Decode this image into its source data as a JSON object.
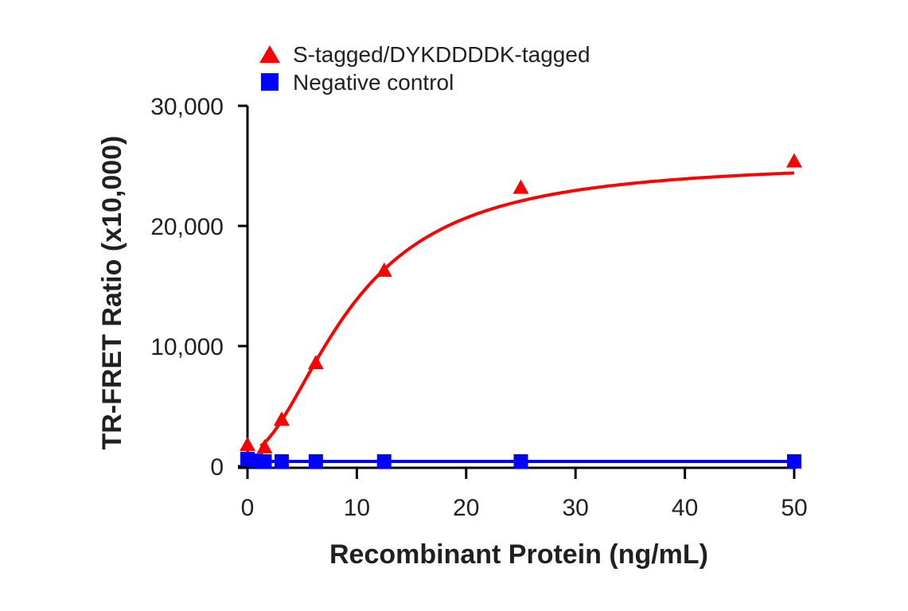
{
  "chart_data": {
    "type": "line",
    "title": "",
    "xlabel": "Recombinant Protein (ng/mL)",
    "ylabel": "TR-FRET Ratio (x10,000)",
    "xlim": [
      0,
      50
    ],
    "ylim": [
      0,
      30000
    ],
    "xticks": [
      0,
      10,
      20,
      30,
      40,
      50
    ],
    "xtick_labels": [
      "0",
      "10",
      "20",
      "30",
      "40",
      "50"
    ],
    "yticks": [
      0,
      10000,
      20000,
      30000
    ],
    "ytick_labels": [
      "0",
      "10,000",
      "20,000",
      "30,000"
    ],
    "grid": false,
    "legend": "top-left",
    "series": [
      {
        "name": "S-tagged/DYKDDDDK-tagged",
        "marker": "triangle",
        "color": "#ff0000",
        "x": [
          0,
          1.5625,
          3.125,
          6.25,
          12.5,
          25,
          50
        ],
        "y": [
          1800,
          1600,
          3900,
          8600,
          16300,
          23200,
          25400
        ]
      },
      {
        "name": "Negative control",
        "marker": "square",
        "color": "#0000ff",
        "x": [
          0,
          0.78,
          1.5625,
          3.125,
          6.25,
          12.5,
          25,
          50
        ],
        "y": [
          600,
          450,
          400,
          400,
          400,
          400,
          400,
          400
        ]
      }
    ]
  }
}
